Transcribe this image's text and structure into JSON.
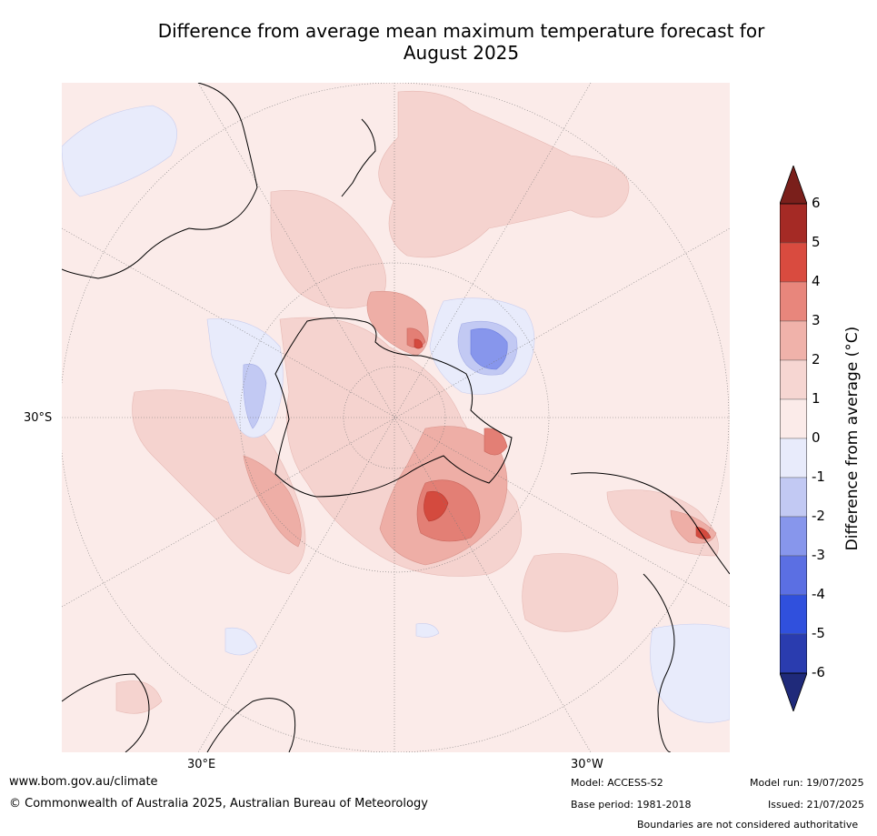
{
  "title_line1": "Difference from average mean maximum temperature forecast for",
  "title_line2": "August 2025",
  "map": {
    "lat_labels": [
      "30°S"
    ],
    "lon_labels": [
      "30°E",
      "30°W"
    ]
  },
  "colorbar": {
    "title": "Difference from average (°C)",
    "ticks": [
      "6",
      "5",
      "4",
      "3",
      "2",
      "1",
      "0",
      "-1",
      "-2",
      "-3",
      "-4",
      "-5",
      "-6"
    ],
    "colors": [
      "#7a1f1b",
      "#a52a25",
      "#d94b3f",
      "#e8867c",
      "#f0b2aa",
      "#f6d6d2",
      "#fbebe9",
      "#e8ebfb",
      "#c2c9f3",
      "#8796ec",
      "#5b6fe3",
      "#3050dd",
      "#2a3caf",
      "#1f2a7a"
    ]
  },
  "footer": {
    "url": "www.bom.gov.au/climate",
    "copyright": "© Commonwealth of Australia 2025, Australian Bureau of Meteorology",
    "model": "Model: ACCESS-S2",
    "base_period": "Base period: 1981-2018",
    "model_run": "Model run: 19/07/2025",
    "issued": "Issued: 21/07/2025",
    "disclaimer": "Boundaries are not considered authoritative"
  }
}
